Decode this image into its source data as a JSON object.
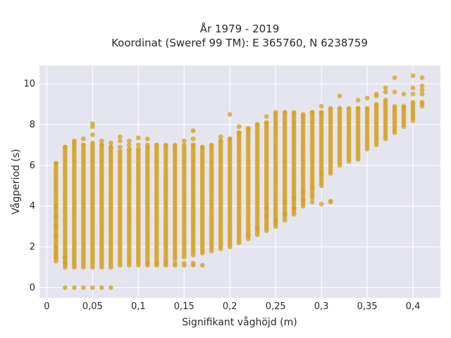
{
  "chart_data": {
    "type": "scatter",
    "title_lines": [
      "År 1979 - 2019",
      "Koordinat (Sweref 99 TM): E 365760, N 6238759"
    ],
    "xlabel": "Signifikant våghöjd (m)",
    "ylabel": "Vågperiod (s)",
    "xlim": [
      -0.008,
      0.43
    ],
    "ylim": [
      -0.5,
      10.9
    ],
    "xticks": [
      0,
      0.05,
      0.1,
      0.15,
      0.2,
      0.25,
      0.3,
      0.35,
      0.4
    ],
    "xtick_labels": [
      "0",
      "0,05",
      "0,1",
      "0,15",
      "0,2",
      "0,25",
      "0,3",
      "0,35",
      "0,4"
    ],
    "yticks": [
      0,
      2,
      4,
      6,
      8,
      10
    ],
    "ytick_labels": [
      "0",
      "2",
      "4",
      "6",
      "8",
      "10"
    ],
    "grid": true,
    "colors": {
      "marker": "#d4a21c",
      "plot_bg": "#e5e5f0",
      "grid": "#ffffff"
    },
    "columns": [
      {
        "x": 0.01,
        "ymin": 1.3,
        "ymax": 6.1,
        "extra": [
          1.5,
          1.7,
          2.0,
          2.5,
          3.0,
          3.5,
          4.0
        ]
      },
      {
        "x": 0.02,
        "ymin": 1.0,
        "ymax": 6.9,
        "extra": [
          0,
          1.2,
          1.5
        ]
      },
      {
        "x": 0.03,
        "ymin": 1.0,
        "ymax": 7.1,
        "extra": [
          0,
          7.2
        ]
      },
      {
        "x": 0.04,
        "ymin": 1.0,
        "ymax": 7.0,
        "extra": [
          0,
          7.3
        ]
      },
      {
        "x": 0.05,
        "ymin": 1.0,
        "ymax": 7.1,
        "extra": [
          0,
          7.5,
          7.9,
          8.05
        ]
      },
      {
        "x": 0.06,
        "ymin": 1.0,
        "ymax": 7.0,
        "extra": [
          0,
          7.2
        ]
      },
      {
        "x": 0.07,
        "ymin": 1.0,
        "ymax": 6.9,
        "extra": [
          0,
          7.1
        ]
      },
      {
        "x": 0.08,
        "ymin": 1.1,
        "ymax": 6.7,
        "extra": [
          6.9,
          7.2,
          7.4
        ]
      },
      {
        "x": 0.09,
        "ymin": 1.1,
        "ymax": 6.8,
        "extra": [
          7.0,
          7.2
        ]
      },
      {
        "x": 0.1,
        "ymin": 1.1,
        "ymax": 6.8,
        "extra": [
          7.0,
          7.35
        ]
      },
      {
        "x": 0.11,
        "ymin": 1.1,
        "ymax": 6.9,
        "extra": [
          7.0,
          7.3,
          1.2
        ]
      },
      {
        "x": 0.12,
        "ymin": 1.1,
        "ymax": 7.0,
        "extra": [
          1.2
        ]
      },
      {
        "x": 0.13,
        "ymin": 1.3,
        "ymax": 7.0,
        "extra": [
          1.1,
          1.2
        ]
      },
      {
        "x": 0.14,
        "ymin": 1.4,
        "ymax": 7.0,
        "extra": [
          1.1,
          1.2
        ]
      },
      {
        "x": 0.15,
        "ymin": 1.5,
        "ymax": 7.0,
        "extra": [
          1.1,
          1.2,
          7.2
        ]
      },
      {
        "x": 0.16,
        "ymin": 1.6,
        "ymax": 7.0,
        "extra": [
          1.1,
          1.2,
          7.3,
          7.7
        ]
      },
      {
        "x": 0.17,
        "ymin": 1.7,
        "ymax": 6.9,
        "extra": [
          1.1
        ]
      },
      {
        "x": 0.18,
        "ymin": 1.8,
        "ymax": 7.0,
        "extra": []
      },
      {
        "x": 0.19,
        "ymin": 1.9,
        "ymax": 7.2,
        "extra": [
          7.4
        ]
      },
      {
        "x": 0.2,
        "ymin": 2.0,
        "ymax": 7.3,
        "extra": [
          8.5
        ]
      },
      {
        "x": 0.21,
        "ymin": 2.2,
        "ymax": 7.6,
        "extra": [
          7.9
        ]
      },
      {
        "x": 0.22,
        "ymin": 2.4,
        "ymax": 7.8,
        "extra": [
          2.6
        ]
      },
      {
        "x": 0.23,
        "ymin": 2.6,
        "ymax": 8.0,
        "extra": [
          2.9
        ]
      },
      {
        "x": 0.24,
        "ymin": 2.8,
        "ymax": 8.1,
        "extra": [
          3.5,
          3.9,
          8.4
        ]
      },
      {
        "x": 0.25,
        "ymin": 3.0,
        "ymax": 8.6,
        "extra": [
          3.3
        ]
      },
      {
        "x": 0.26,
        "ymin": 3.3,
        "ymax": 8.6,
        "extra": [
          3.6,
          4.2
        ]
      },
      {
        "x": 0.27,
        "ymin": 3.6,
        "ymax": 8.6,
        "extra": [
          3.9,
          4.4
        ]
      },
      {
        "x": 0.28,
        "ymin": 4.0,
        "ymax": 8.5,
        "extra": [
          4.3,
          4.7
        ]
      },
      {
        "x": 0.29,
        "ymin": 4.4,
        "ymax": 8.6,
        "extra": [
          4.2,
          4.9
        ]
      },
      {
        "x": 0.3,
        "ymin": 5.0,
        "ymax": 8.6,
        "extra": [
          4.1,
          5.6,
          8.9
        ]
      },
      {
        "x": 0.31,
        "ymin": 5.6,
        "ymax": 8.8,
        "extra": [
          4.2,
          4.25
        ]
      },
      {
        "x": 0.32,
        "ymin": 6.0,
        "ymax": 8.8,
        "extra": [
          9.4
        ]
      },
      {
        "x": 0.33,
        "ymin": 6.2,
        "ymax": 8.8,
        "extra": []
      },
      {
        "x": 0.34,
        "ymin": 6.4,
        "ymax": 8.8,
        "extra": [
          6.3,
          9.2
        ]
      },
      {
        "x": 0.35,
        "ymin": 6.8,
        "ymax": 8.8,
        "extra": [
          9.3
        ]
      },
      {
        "x": 0.36,
        "ymin": 7.0,
        "ymax": 9.0,
        "extra": [
          9.4,
          9.5
        ]
      },
      {
        "x": 0.37,
        "ymin": 7.3,
        "ymax": 9.2,
        "extra": [
          9.6,
          9.8
        ]
      },
      {
        "x": 0.38,
        "ymin": 7.6,
        "ymax": 8.9,
        "extra": [
          9.6,
          10.3
        ]
      },
      {
        "x": 0.39,
        "ymin": 7.9,
        "ymax": 8.9,
        "extra": [
          9.5
        ]
      },
      {
        "x": 0.4,
        "ymin": 8.2,
        "ymax": 9.1,
        "extra": [
          9.5,
          9.8,
          10.4
        ]
      },
      {
        "x": 0.41,
        "ymin": 8.9,
        "ymax": 9.1,
        "extra": [
          9.5,
          9.7,
          9.9,
          10.3
        ]
      }
    ]
  }
}
